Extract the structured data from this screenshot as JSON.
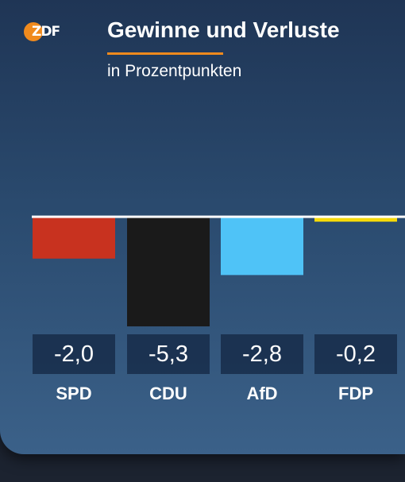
{
  "brand": {
    "logo_text": "ZDF"
  },
  "header": {
    "title": "Gewinne und Verluste",
    "subtitle": "in Prozentpunkten"
  },
  "colors": {
    "accent": "#f08a1d",
    "background_top": "#1f3555",
    "background_bottom": "#3b6189",
    "baseline": "#ffffff"
  },
  "chart_data": {
    "type": "bar",
    "title": "Gewinne und Verluste",
    "subtitle": "in Prozentpunkten",
    "categories": [
      "SPD",
      "CDU",
      "AfD",
      "FDP"
    ],
    "values": [
      -2.0,
      -5.3,
      -2.8,
      -0.2
    ],
    "value_labels": [
      "-2,0",
      "-5,3",
      "-2,8",
      "-0,2"
    ],
    "colors": [
      "#c8321f",
      "#1a1a1a",
      "#4fc3f7",
      "#f5d90a"
    ],
    "ylim": [
      -5.3,
      0
    ],
    "grid": false,
    "legend": "none"
  }
}
